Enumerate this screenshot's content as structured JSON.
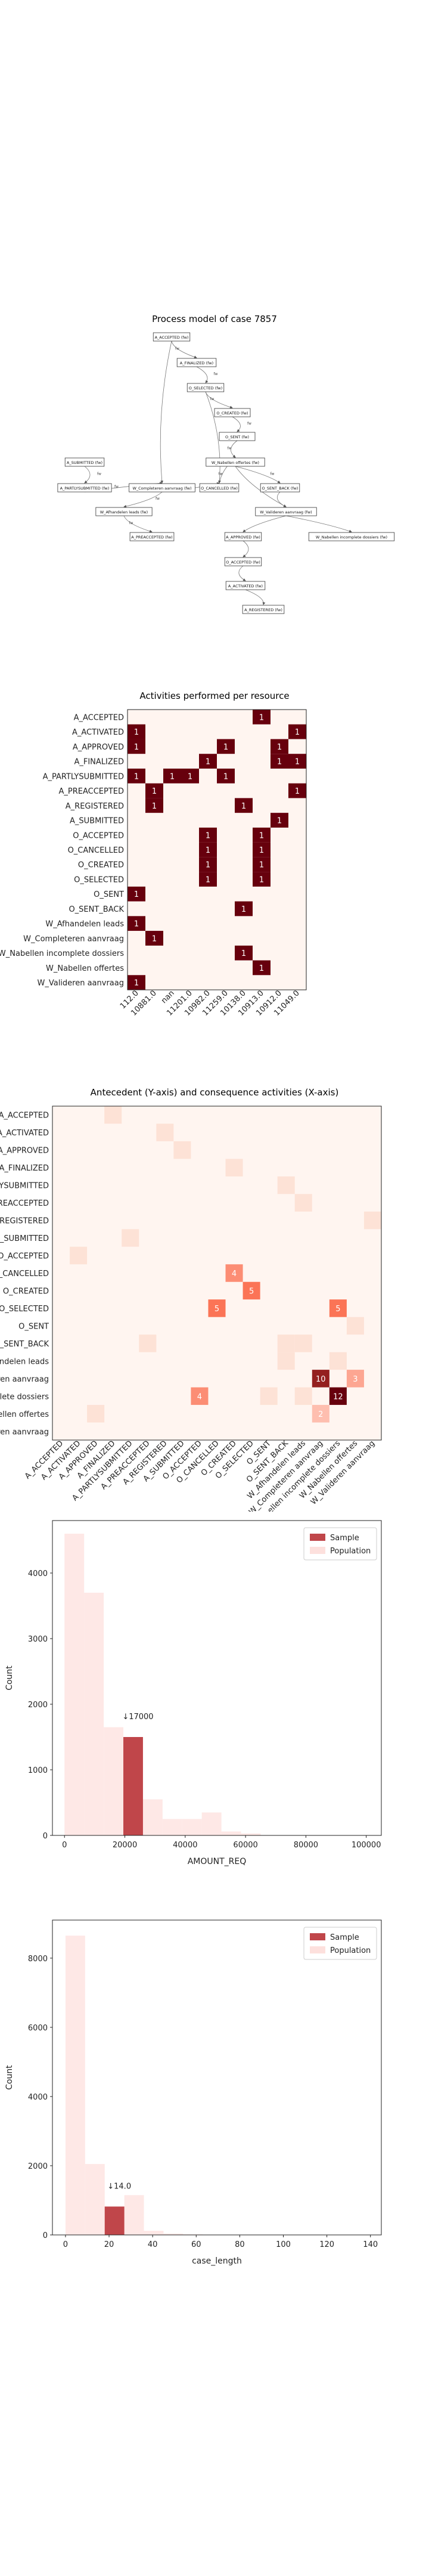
{
  "process_model": {
    "title": "Process model of case 7857",
    "nodes": [
      {
        "id": "n1",
        "label": "A_ACCEPTED (fw)"
      },
      {
        "id": "n2",
        "label": "A_FINALIZED (fw)"
      },
      {
        "id": "n3",
        "label": "O_SELECTED (fw)"
      },
      {
        "id": "n4",
        "label": "O_CREATED (fw)"
      },
      {
        "id": "n5",
        "label": "O_SENT (fw)"
      },
      {
        "id": "n6",
        "label": "W_Nabellen offertes (fw)"
      },
      {
        "id": "n7",
        "label": "A_SUBMITTED (fw)"
      },
      {
        "id": "n8",
        "label": "A_PARTLYSUBMITTED (fw)"
      },
      {
        "id": "n9",
        "label": "W_Completeren aanvraag (fw)"
      },
      {
        "id": "n10",
        "label": "O_CANCELLED (fw)"
      },
      {
        "id": "n11",
        "label": "O_SENT_BACK (fw)"
      },
      {
        "id": "n12",
        "label": "W_Afhandelen leads (fw)"
      },
      {
        "id": "n13",
        "label": "W_Valideren aanvraag (fw)"
      },
      {
        "id": "n14",
        "label": "A_PREACCEPTED (fw)"
      },
      {
        "id": "n15",
        "label": "A_APPROVED (fw)"
      },
      {
        "id": "n16",
        "label": "W_Nabellen incomplete dossiers (fw)"
      },
      {
        "id": "n17",
        "label": "O_ACCEPTED (fw)"
      },
      {
        "id": "n18",
        "label": "A_ACTIVATED (fw)"
      },
      {
        "id": "n19",
        "label": "A_REGISTERED (fw)"
      }
    ],
    "edge_labels": [
      "fw",
      "fw",
      "fw",
      "fw",
      "fw",
      "fw",
      "fw",
      "fw",
      "fw",
      "fw",
      "fw",
      "fw"
    ]
  },
  "resource_chart": {
    "type": "heatmap",
    "title": "Activities performed per resource",
    "rows": [
      "A_ACCEPTED",
      "A_ACTIVATED",
      "A_APPROVED",
      "A_FINALIZED",
      "A_PARTLYSUBMITTED",
      "A_PREACCEPTED",
      "A_REGISTERED",
      "A_SUBMITTED",
      "O_ACCEPTED",
      "O_CANCELLED",
      "O_CREATED",
      "O_SELECTED",
      "O_SENT",
      "O_SENT_BACK",
      "W_Afhandelen leads",
      "W_Completeren aanvraag",
      "W_Nabellen incomplete dossiers",
      "W_Nabellen offertes",
      "W_Valideren aanvraag"
    ],
    "columns": [
      "112.0",
      "10881.0",
      "nan",
      "11201.0",
      "10982.0",
      "11259.0",
      "10138.0",
      "10913.0",
      "10912.0",
      "11049.0"
    ],
    "cells": [
      {
        "r": 0,
        "c": 7,
        "v": 1
      },
      {
        "r": 1,
        "c": 0,
        "v": 1
      },
      {
        "r": 1,
        "c": 9,
        "v": 1
      },
      {
        "r": 2,
        "c": 0,
        "v": 1
      },
      {
        "r": 2,
        "c": 5,
        "v": 1
      },
      {
        "r": 2,
        "c": 8,
        "v": 1
      },
      {
        "r": 3,
        "c": 4,
        "v": 1
      },
      {
        "r": 3,
        "c": 8,
        "v": 1
      },
      {
        "r": 3,
        "c": 9,
        "v": 1
      },
      {
        "r": 4,
        "c": 0,
        "v": 1
      },
      {
        "r": 4,
        "c": 2,
        "v": 1
      },
      {
        "r": 4,
        "c": 3,
        "v": 1
      },
      {
        "r": 4,
        "c": 5,
        "v": 1
      },
      {
        "r": 5,
        "c": 1,
        "v": 1
      },
      {
        "r": 5,
        "c": 9,
        "v": 1
      },
      {
        "r": 6,
        "c": 1,
        "v": 1
      },
      {
        "r": 6,
        "c": 6,
        "v": 1
      },
      {
        "r": 7,
        "c": 8,
        "v": 1
      },
      {
        "r": 8,
        "c": 4,
        "v": 1
      },
      {
        "r": 8,
        "c": 7,
        "v": 1
      },
      {
        "r": 9,
        "c": 4,
        "v": 1
      },
      {
        "r": 9,
        "c": 7,
        "v": 1
      },
      {
        "r": 10,
        "c": 4,
        "v": 1
      },
      {
        "r": 10,
        "c": 7,
        "v": 1
      },
      {
        "r": 11,
        "c": 4,
        "v": 1
      },
      {
        "r": 11,
        "c": 7,
        "v": 1
      },
      {
        "r": 12,
        "c": 0,
        "v": 1
      },
      {
        "r": 13,
        "c": 6,
        "v": 1
      },
      {
        "r": 14,
        "c": 0,
        "v": 1
      },
      {
        "r": 15,
        "c": 1,
        "v": 1
      },
      {
        "r": 16,
        "c": 6,
        "v": 1
      },
      {
        "r": 17,
        "c": 7,
        "v": 1
      },
      {
        "r": 18,
        "c": 0,
        "v": 1
      }
    ]
  },
  "antecedent_chart": {
    "type": "heatmap",
    "title": "Antecedent (Y-axis) and consequence activities (X-axis)",
    "labels": [
      "A_ACCEPTED",
      "A_ACTIVATED",
      "A_APPROVED",
      "A_FINALIZED",
      "A_PARTLYSUBMITTED",
      "A_PREACCEPTED",
      "A_REGISTERED",
      "A_SUBMITTED",
      "O_ACCEPTED",
      "O_CANCELLED",
      "O_CREATED",
      "O_SELECTED",
      "O_SENT",
      "O_SENT_BACK",
      "W_Afhandelen leads",
      "W_Completeren aanvraag",
      "W_Nabellen incomplete dossiers",
      "W_Nabellen offertes",
      "W_Valideren aanvraag"
    ],
    "cells": [
      {
        "r": 0,
        "c": 3,
        "v": 1
      },
      {
        "r": 1,
        "c": 6,
        "v": 1
      },
      {
        "r": 2,
        "c": 7,
        "v": 1
      },
      {
        "r": 3,
        "c": 10,
        "v": 1
      },
      {
        "r": 4,
        "c": 13,
        "v": 1
      },
      {
        "r": 5,
        "c": 14,
        "v": 1
      },
      {
        "r": 6,
        "c": 18,
        "v": 1
      },
      {
        "r": 7,
        "c": 4,
        "v": 1
      },
      {
        "r": 8,
        "c": 1,
        "v": 1
      },
      {
        "r": 9,
        "c": 10,
        "v": 4
      },
      {
        "r": 10,
        "c": 11,
        "v": 5
      },
      {
        "r": 11,
        "c": 9,
        "v": 5
      },
      {
        "r": 11,
        "c": 16,
        "v": 5
      },
      {
        "r": 12,
        "c": 17,
        "v": 1
      },
      {
        "r": 13,
        "c": 5,
        "v": 1
      },
      {
        "r": 13,
        "c": 13,
        "v": 1
      },
      {
        "r": 13,
        "c": 14,
        "v": 1
      },
      {
        "r": 14,
        "c": 13,
        "v": 1
      },
      {
        "r": 14,
        "c": 16,
        "v": 1
      },
      {
        "r": 15,
        "c": 15,
        "v": 10
      },
      {
        "r": 15,
        "c": 17,
        "v": 3
      },
      {
        "r": 16,
        "c": 8,
        "v": 4
      },
      {
        "r": 16,
        "c": 12,
        "v": 1
      },
      {
        "r": 16,
        "c": 14,
        "v": 1
      },
      {
        "r": 16,
        "c": 16,
        "v": 12
      },
      {
        "r": 17,
        "c": 2,
        "v": 1
      },
      {
        "r": 17,
        "c": 15,
        "v": 2
      }
    ],
    "max": 12
  },
  "amount_chart": {
    "type": "bar",
    "xlabel": "AMOUNT_REQ",
    "ylabel": "Count",
    "xlim": [
      -4000,
      105000
    ],
    "ylim": [
      0,
      4800
    ],
    "xticks": [
      0,
      20000,
      40000,
      60000,
      80000,
      100000
    ],
    "yticks": [
      0,
      1000,
      2000,
      3000,
      4000
    ],
    "bin_width": 6500,
    "population": [
      {
        "x0": 0,
        "v": 4600
      },
      {
        "x0": 6500,
        "v": 3700
      },
      {
        "x0": 13000,
        "v": 1650
      },
      {
        "x0": 19500,
        "v": 1500
      },
      {
        "x0": 26000,
        "v": 550
      },
      {
        "x0": 32500,
        "v": 250
      },
      {
        "x0": 39000,
        "v": 250
      },
      {
        "x0": 45500,
        "v": 350
      },
      {
        "x0": 52000,
        "v": 60
      },
      {
        "x0": 58500,
        "v": 30
      }
    ],
    "sample": [
      {
        "x0": 19500,
        "v": 1500
      }
    ],
    "marker_label": "↓17000",
    "marker_value": 17000,
    "legend": [
      "Sample",
      "Population"
    ]
  },
  "length_chart": {
    "type": "bar",
    "xlabel": "case_length",
    "ylabel": "Count",
    "xlim": [
      -6,
      145
    ],
    "ylim": [
      0,
      9100
    ],
    "xticks": [
      0,
      20,
      40,
      60,
      80,
      100,
      120,
      140
    ],
    "yticks": [
      0,
      2000,
      4000,
      6000,
      8000
    ],
    "bin_width": 9,
    "population": [
      {
        "x0": 0,
        "v": 8650
      },
      {
        "x0": 9,
        "v": 2050
      },
      {
        "x0": 18,
        "v": 820
      },
      {
        "x0": 27,
        "v": 1150
      },
      {
        "x0": 36,
        "v": 120
      },
      {
        "x0": 45,
        "v": 40
      },
      {
        "x0": 54,
        "v": 15
      }
    ],
    "sample": [
      {
        "x0": 18,
        "v": 820
      }
    ],
    "marker_label": "↓14.0",
    "marker_value": 14,
    "legend": [
      "Sample",
      "Population"
    ]
  },
  "colors": {
    "dark_red": "#67000d",
    "mid_red": "#c9383c",
    "pale": "#fff5f0",
    "pop": "#fde0dd",
    "sample": "#c0464a"
  }
}
